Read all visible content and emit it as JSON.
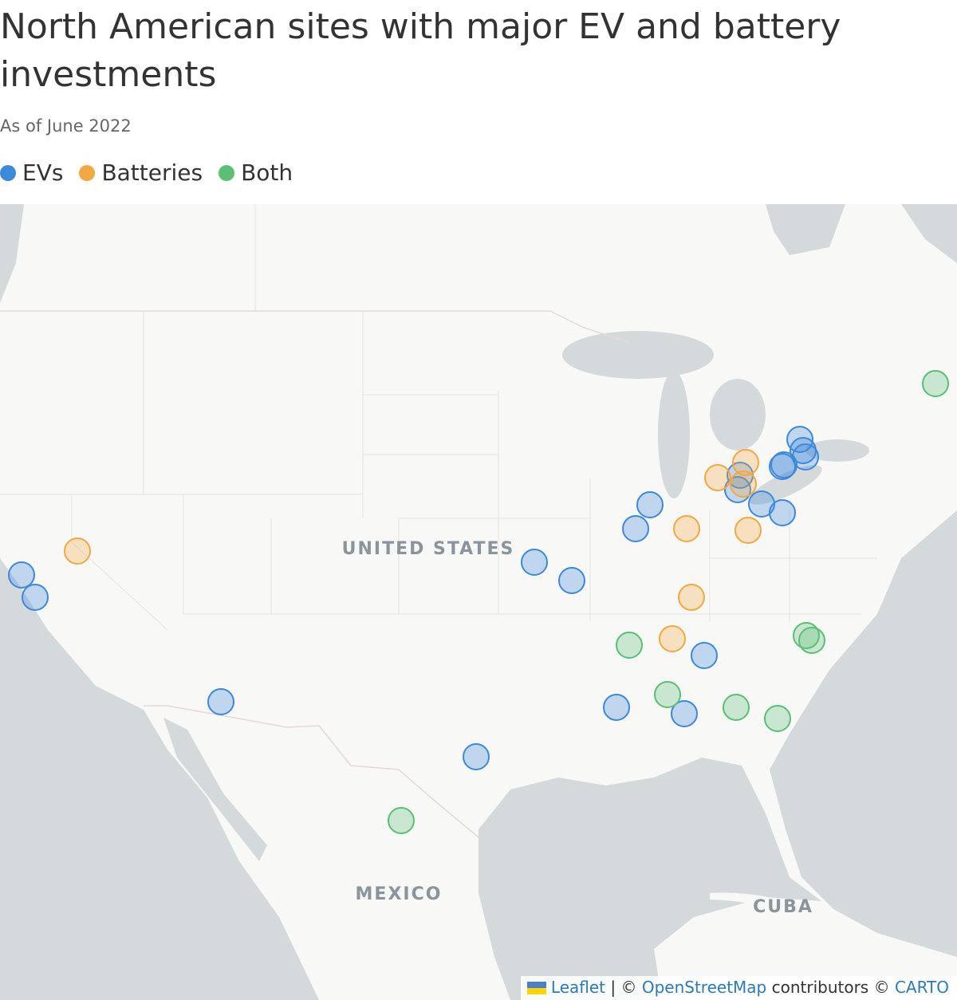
{
  "header": {
    "title": "North American sites with major EV and battery investments",
    "subtitle": "As of June 2022"
  },
  "legend": [
    {
      "label": "EVs",
      "color": "#3d89dc"
    },
    {
      "label": "Batteries",
      "color": "#f3a841"
    },
    {
      "label": "Both",
      "color": "#5cbf76"
    }
  ],
  "map_labels": [
    "UNITED STATES",
    "MEXICO",
    "CUBA"
  ],
  "attribution": {
    "leaflet": "Leaflet",
    "sep": "| ©",
    "osm": "OpenStreetMap",
    "contributors": "contributors ©",
    "carto": "CARTO"
  }
}
